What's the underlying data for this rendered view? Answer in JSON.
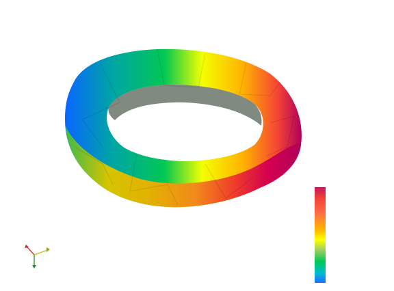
{
  "scene": {
    "background": "#ffffff",
    "object": "torus-mesh",
    "colormap": [
      "#c2185b",
      "#f44336",
      "#ff7043",
      "#ffb300",
      "#ffff00",
      "#9ccc65",
      "#00c853",
      "#00bcd4",
      "#1e6bff"
    ]
  },
  "colorbar": {
    "top_color": "#c2185b",
    "bottom_color": "#1e6bff"
  },
  "axes_triad": {
    "x_color": "#e53935",
    "y_color": "#c0ca33",
    "z_color": "#43a047"
  }
}
